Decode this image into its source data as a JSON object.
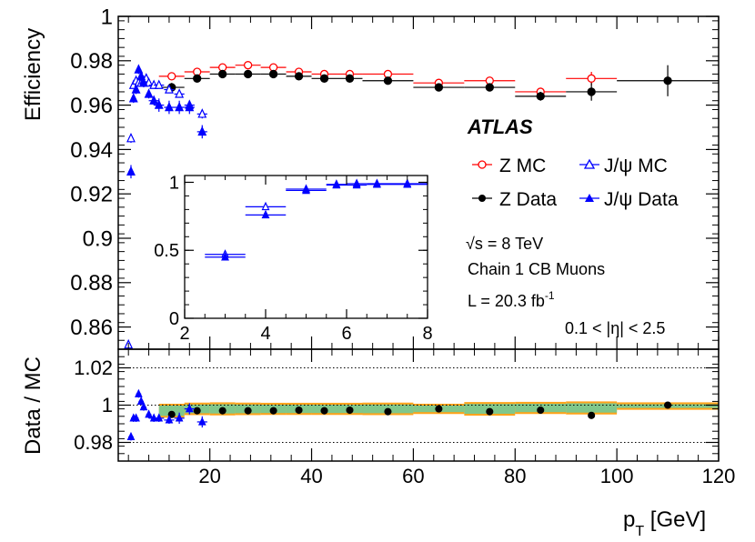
{
  "chart_data": [
    {
      "panel": "top",
      "type": "scatter",
      "ylabel": "Efficiency",
      "xlim": [
        2,
        120
      ],
      "ylim": [
        0.85,
        1.0
      ],
      "yticks": [
        0.86,
        0.88,
        0.9,
        0.92,
        0.94,
        0.96,
        0.98,
        1
      ],
      "ytick_labels": [
        "0.86",
        "0.88",
        "0.9",
        "0.92",
        "0.94",
        "0.96",
        "0.98",
        "1"
      ],
      "series": [
        {
          "name": "Z MC",
          "marker": "open-circle",
          "color": "#ff0000",
          "points": [
            [
              12.5,
              0.973,
              2.5,
              0
            ],
            [
              17.5,
              0.975,
              2.5,
              0
            ],
            [
              22.5,
              0.977,
              2.5,
              0
            ],
            [
              27.5,
              0.978,
              2.5,
              0
            ],
            [
              32.5,
              0.977,
              2.5,
              0
            ],
            [
              37.5,
              0.975,
              2.5,
              0
            ],
            [
              42.5,
              0.974,
              2.5,
              0
            ],
            [
              47.5,
              0.974,
              2.5,
              0
            ],
            [
              55,
              0.974,
              5,
              0
            ],
            [
              65,
              0.97,
              5,
              0
            ],
            [
              75,
              0.971,
              5,
              0
            ],
            [
              85,
              0.966,
              5,
              0
            ],
            [
              95,
              0.972,
              5,
              0.003
            ]
          ]
        },
        {
          "name": "Z Data",
          "marker": "filled-circle",
          "color": "#000000",
          "points": [
            [
              12.5,
              0.968,
              2.5,
              0.002
            ],
            [
              17.5,
              0.972,
              2.5,
              0
            ],
            [
              22.5,
              0.974,
              2.5,
              0
            ],
            [
              27.5,
              0.974,
              2.5,
              0
            ],
            [
              32.5,
              0.974,
              2.5,
              0
            ],
            [
              37.5,
              0.973,
              2.5,
              0
            ],
            [
              42.5,
              0.972,
              2.5,
              0
            ],
            [
              47.5,
              0.972,
              2.5,
              0
            ],
            [
              55,
              0.971,
              5,
              0
            ],
            [
              65,
              0.968,
              5,
              0
            ],
            [
              75,
              0.968,
              5,
              0
            ],
            [
              85,
              0.964,
              5,
              0.002
            ],
            [
              95,
              0.966,
              5,
              0.004
            ],
            [
              110,
              0.971,
              10,
              0.007
            ]
          ]
        },
        {
          "name": "J/ψ MC",
          "marker": "open-triangle",
          "color": "#0000ff",
          "points": [
            [
              4,
              0.852,
              0.5,
              0
            ],
            [
              4.5,
              0.945,
              0.5,
              0.002
            ],
            [
              5,
              0.969,
              0.5,
              0.001
            ],
            [
              5.5,
              0.971,
              0.5,
              0.001
            ],
            [
              6,
              0.97,
              0.5,
              0.001
            ],
            [
              6.5,
              0.97,
              0.5,
              0.001
            ],
            [
              7,
              0.971,
              0.5,
              0.001
            ],
            [
              7.5,
              0.972,
              0.5,
              0.001
            ],
            [
              8,
              0.97,
              0.5,
              0.001
            ],
            [
              9,
              0.969,
              1,
              0.001
            ],
            [
              10,
              0.969,
              1,
              0.001
            ],
            [
              12,
              0.967,
              1,
              0.001
            ],
            [
              14,
              0.965,
              1,
              0.001
            ],
            [
              16,
              0.96,
              1,
              0.001
            ],
            [
              18.5,
              0.956,
              1,
              0.002
            ]
          ]
        },
        {
          "name": "J/ψ Data",
          "marker": "filled-triangle",
          "color": "#0000ff",
          "points": [
            [
              4.5,
              0.93,
              0.5,
              0.003
            ],
            [
              5,
              0.963,
              0.5,
              0.002
            ],
            [
              5.5,
              0.967,
              0.5,
              0.002
            ],
            [
              6,
              0.976,
              0.5,
              0.002
            ],
            [
              6.5,
              0.973,
              0.5,
              0.002
            ],
            [
              7,
              0.97,
              0.5,
              0.002
            ],
            [
              8,
              0.965,
              0.5,
              0.002
            ],
            [
              9,
              0.962,
              1,
              0.002
            ],
            [
              10,
              0.96,
              1,
              0.003
            ],
            [
              12,
              0.959,
              1,
              0.003
            ],
            [
              14,
              0.959,
              1,
              0.003
            ],
            [
              16,
              0.959,
              1,
              0.003
            ],
            [
              18.5,
              0.948,
              1,
              0.003
            ]
          ]
        }
      ],
      "legend": {
        "title": "ATLAS",
        "entries": [
          "Z MC",
          "J/ψ MC",
          "Z Data",
          "J/ψ Data"
        ],
        "position": "top-right"
      },
      "annotations": [
        "√s = 8 TeV",
        "Chain 1 CB Muons",
        "L = 20.3 fb",
        "-1",
        "0.1 < |η| < 2.5"
      ]
    },
    {
      "panel": "inset",
      "type": "scatter",
      "xlim": [
        2,
        8
      ],
      "ylim": [
        0,
        1.05
      ],
      "xticks": [
        2,
        4,
        6,
        8
      ],
      "yticks": [
        0,
        0.5,
        1
      ],
      "ytick_labels": [
        "0",
        "0.5",
        "1"
      ],
      "series": [
        {
          "name": "J/ψ MC",
          "marker": "open-triangle",
          "color": "#0000ff",
          "points": [
            [
              3,
              0.47,
              0.5
            ],
            [
              4,
              0.82,
              0.5
            ],
            [
              5,
              0.95,
              0.5
            ],
            [
              5.75,
              0.985,
              0.25
            ],
            [
              6.25,
              0.99,
              0.25
            ],
            [
              6.75,
              0.99,
              0.25
            ],
            [
              7.5,
              0.99,
              0.5
            ]
          ]
        },
        {
          "name": "J/ψ Data",
          "marker": "filled-triangle",
          "color": "#0000ff",
          "points": [
            [
              3,
              0.45,
              0.5
            ],
            [
              4,
              0.76,
              0.5
            ],
            [
              5,
              0.94,
              0.5
            ],
            [
              5.75,
              0.98,
              0.25
            ],
            [
              6.25,
              0.98,
              0.25
            ],
            [
              6.75,
              0.985,
              0.25
            ],
            [
              7.5,
              0.985,
              0.5
            ]
          ]
        }
      ]
    },
    {
      "panel": "ratio",
      "type": "scatter",
      "ylabel": "Data / MC",
      "xlabel": "p",
      "xlabel_sub": "T",
      "xlabel_unit": " [GeV]",
      "xlim": [
        2,
        120
      ],
      "ylim": [
        0.97,
        1.03
      ],
      "xticks": [
        20,
        40,
        60,
        80,
        100,
        120
      ],
      "yticks": [
        0.98,
        1,
        1.02
      ],
      "ytick_labels": [
        "0.98",
        "1",
        "1.02"
      ],
      "reference_lines": [
        0.98,
        1,
        1.02
      ],
      "bands": [
        [
          10,
          15,
          0.996,
          0.997
        ],
        [
          15,
          20,
          0.9968,
          0.998
        ],
        [
          20,
          25,
          0.9965,
          0.998
        ],
        [
          25,
          30,
          0.9968,
          0.998
        ],
        [
          30,
          35,
          0.997,
          0.998
        ],
        [
          35,
          40,
          0.997,
          0.998
        ],
        [
          40,
          45,
          0.997,
          0.998
        ],
        [
          45,
          50,
          0.997,
          0.998
        ],
        [
          50,
          60,
          0.9968,
          0.998
        ],
        [
          60,
          70,
          0.998,
          0.998
        ],
        [
          70,
          80,
          0.9962,
          0.998
        ],
        [
          80,
          90,
          0.997,
          0.9985
        ],
        [
          90,
          100,
          0.9965,
          0.9985
        ],
        [
          100,
          120,
          0.9995,
          0.9995
        ]
      ],
      "band_colors": {
        "stat": "#80c78b",
        "syst": "#ffa31a"
      },
      "series": [
        {
          "name": "Z",
          "marker": "filled-circle",
          "color": "#000000",
          "points": [
            [
              12.5,
              0.995
            ],
            [
              17.5,
              0.997
            ],
            [
              22.5,
              0.997
            ],
            [
              27.5,
              0.997
            ],
            [
              32.5,
              0.997
            ],
            [
              37.5,
              0.9973
            ],
            [
              42.5,
              0.997
            ],
            [
              47.5,
              0.9973
            ],
            [
              55,
              0.9965
            ],
            [
              65,
              0.998
            ],
            [
              75,
              0.9965
            ],
            [
              85,
              0.9973
            ],
            [
              95,
              0.9945
            ],
            [
              110,
              1.0
            ]
          ]
        },
        {
          "name": "J/ψ",
          "marker": "filled-triangle",
          "color": "#0000ff",
          "points": [
            [
              4.5,
              0.983,
              0.5,
              0.002
            ],
            [
              5,
              0.993,
              0.5,
              0.002
            ],
            [
              5.5,
              0.993,
              0.5,
              0.002
            ],
            [
              6,
              1.006,
              0.5,
              0.002
            ],
            [
              6.5,
              1.002,
              0.5,
              0.002
            ],
            [
              7,
              0.999,
              0.5,
              0.002
            ],
            [
              8,
              0.995,
              0.5,
              0.002
            ],
            [
              9,
              0.993,
              1,
              0.002
            ],
            [
              10,
              0.993,
              1,
              0.002
            ],
            [
              12,
              0.992,
              1,
              0.002
            ],
            [
              14,
              0.993,
              1,
              0.003
            ],
            [
              16,
              0.998,
              1,
              0.003
            ],
            [
              18.5,
              0.991,
              1,
              0.003
            ]
          ]
        }
      ]
    }
  ]
}
